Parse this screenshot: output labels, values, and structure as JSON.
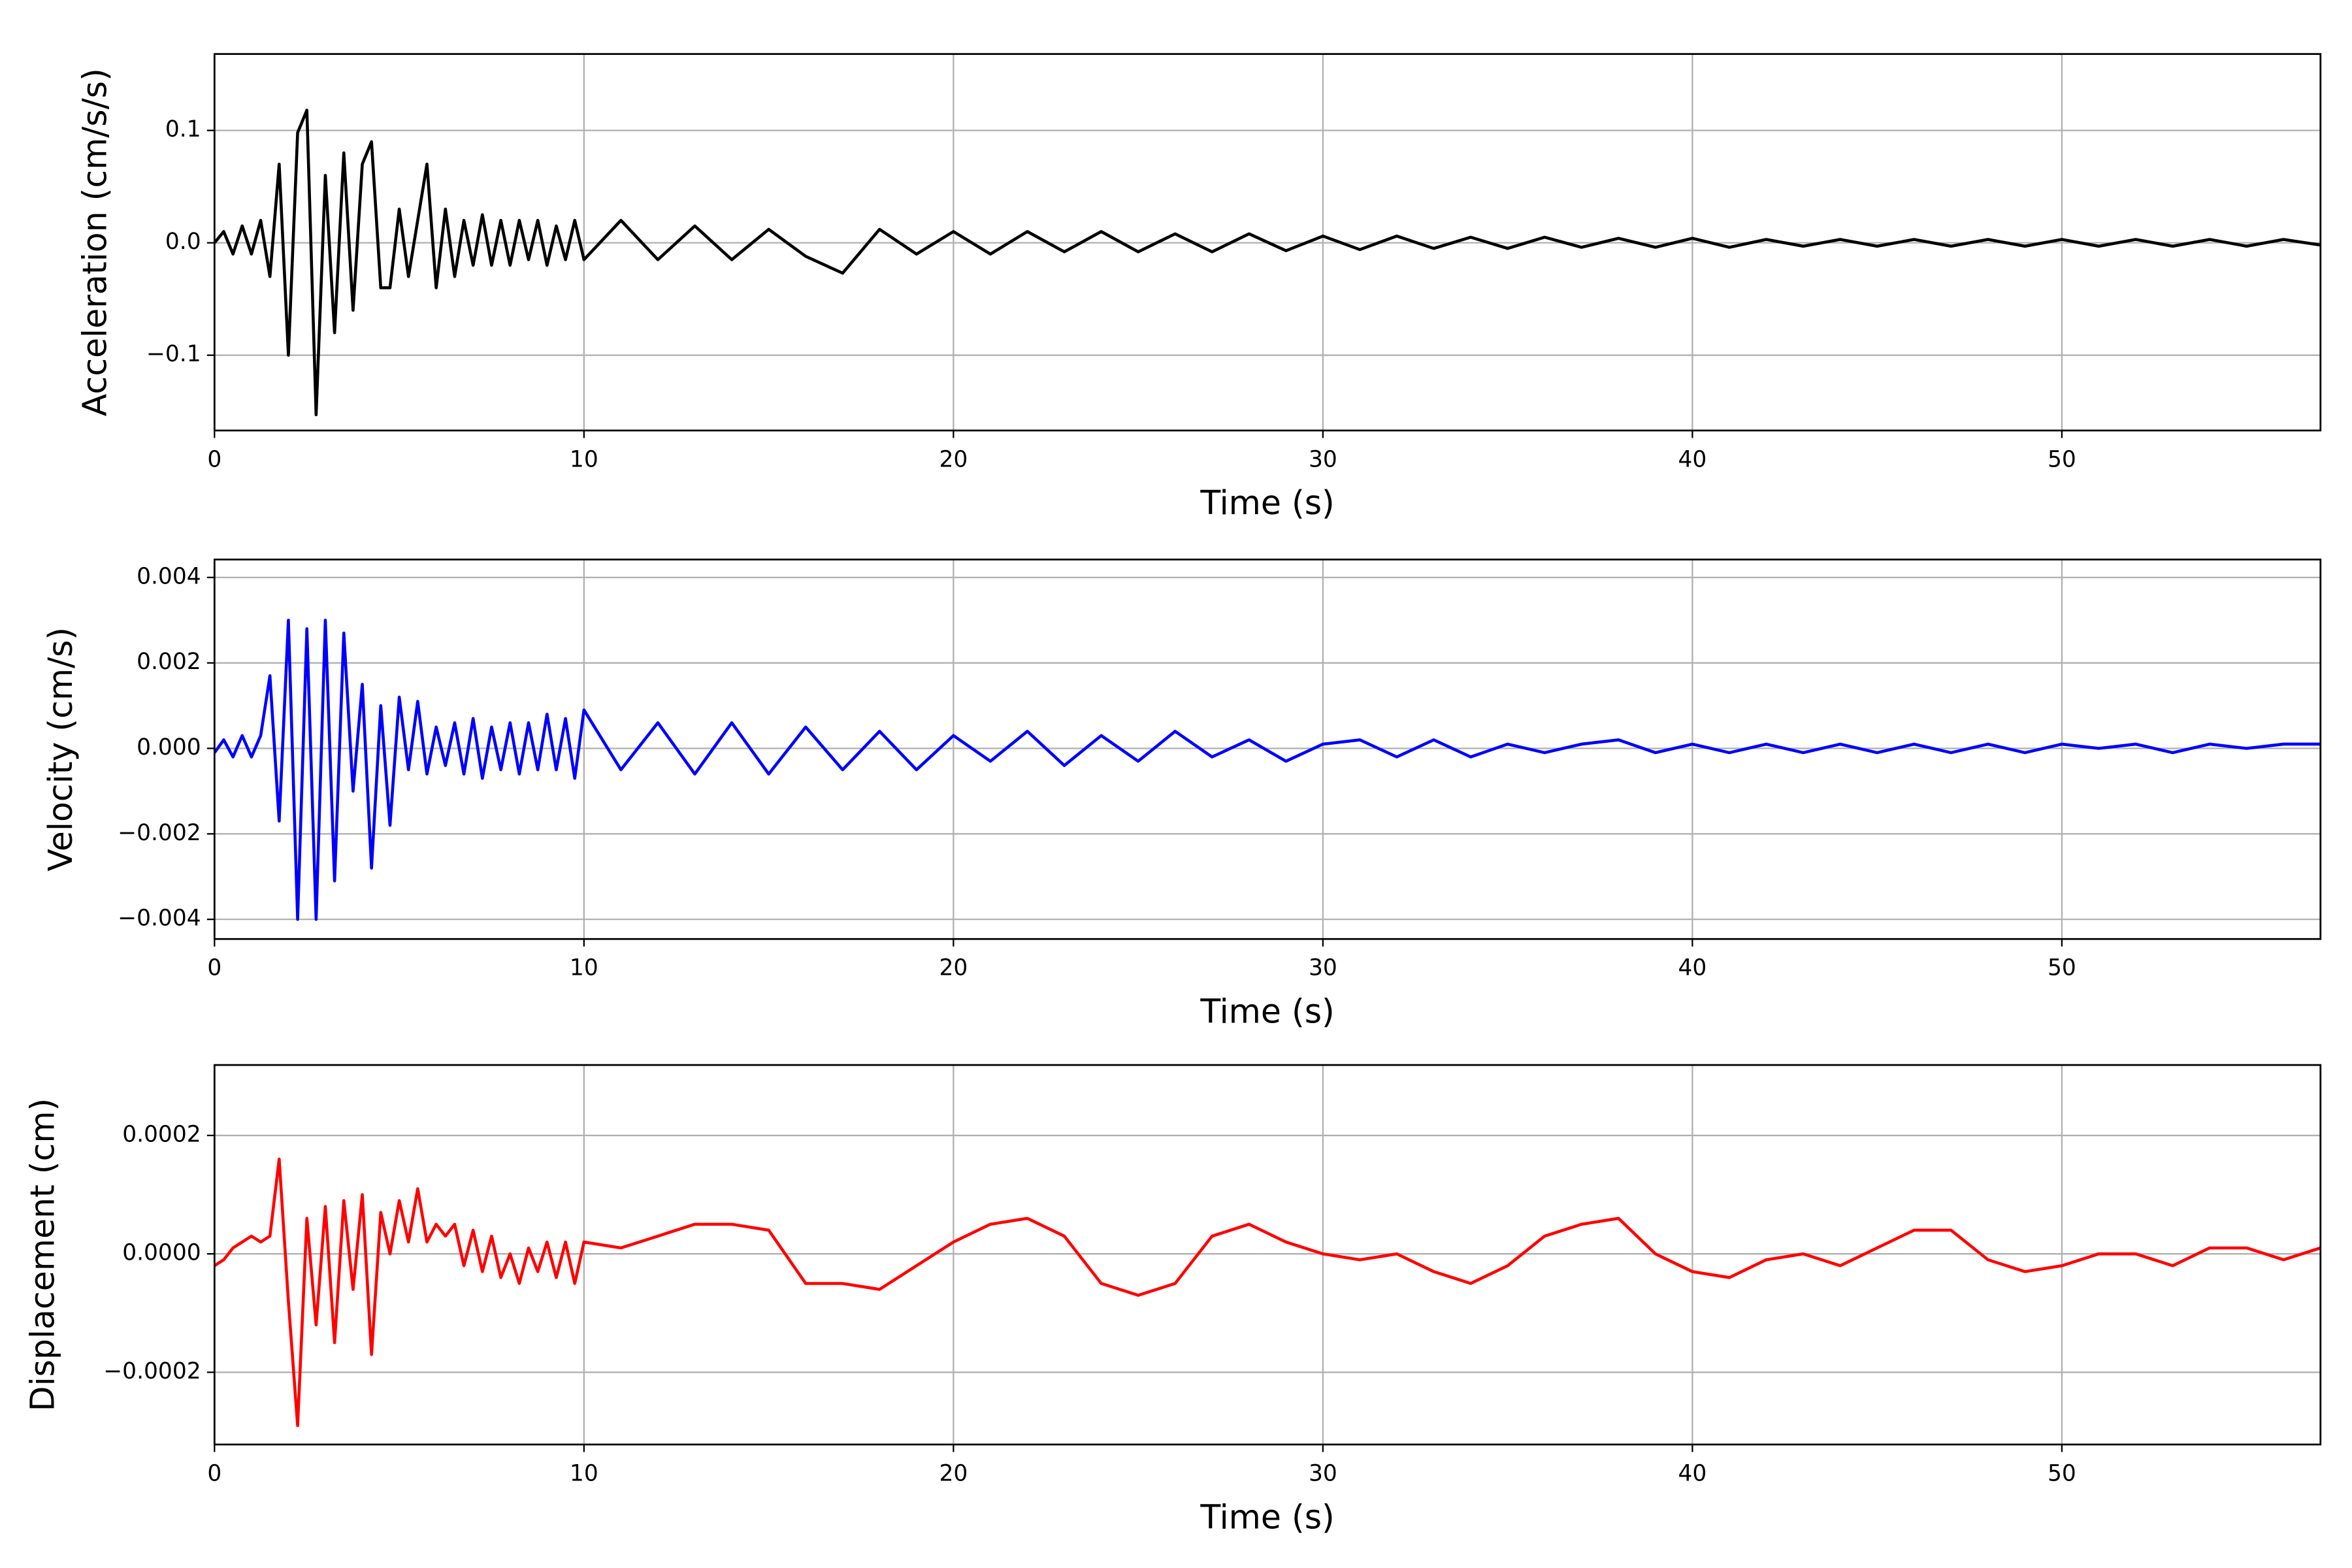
{
  "chart_data": [
    {
      "type": "line",
      "xlabel": "Time (s)",
      "ylabel": "Acceleration (cm/s/s)",
      "color": "#000000",
      "grid": true,
      "xlim": [
        0,
        57
      ],
      "xticks": [
        0,
        10,
        20,
        30,
        40,
        50
      ],
      "ylim": [
        -0.167,
        0.168
      ],
      "yticks": [
        {
          "value": -0.1,
          "label": "−0.1"
        },
        {
          "value": 0,
          "label": "0.0"
        },
        {
          "value": 0.1,
          "label": "0.1"
        }
      ],
      "x": [
        0,
        0.25,
        0.5,
        0.75,
        1,
        1.25,
        1.5,
        1.75,
        2,
        2.25,
        2.5,
        2.75,
        3,
        3.25,
        3.5,
        3.75,
        4,
        4.25,
        4.5,
        4.75,
        5,
        5.25,
        5.5,
        5.75,
        6,
        6.25,
        6.5,
        6.75,
        7,
        7.25,
        7.5,
        7.75,
        8,
        8.25,
        8.5,
        8.75,
        9,
        9.25,
        9.5,
        9.75,
        10,
        11,
        12,
        13,
        14,
        15,
        16,
        17,
        18,
        19,
        20,
        21,
        22,
        23,
        24,
        25,
        26,
        27,
        28,
        29,
        30,
        31,
        32,
        33,
        34,
        35,
        36,
        37,
        38,
        39,
        40,
        41,
        42,
        43,
        44,
        45,
        46,
        47,
        48,
        49,
        50,
        51,
        52,
        53,
        54,
        55,
        56,
        57
      ],
      "values": [
        0,
        0.01,
        -0.01,
        0.015,
        -0.01,
        0.02,
        -0.03,
        0.07,
        -0.1,
        0.098,
        0.118,
        -0.153,
        0.06,
        -0.08,
        0.08,
        -0.06,
        0.07,
        0.09,
        -0.04,
        -0.04,
        0.03,
        -0.03,
        0.02,
        0.07,
        -0.04,
        0.03,
        -0.03,
        0.02,
        -0.02,
        0.025,
        -0.02,
        0.02,
        -0.02,
        0.02,
        -0.015,
        0.02,
        -0.02,
        0.015,
        -0.015,
        0.02,
        -0.015,
        0.02,
        -0.015,
        0.015,
        -0.015,
        0.012,
        -0.012,
        -0.027,
        0.012,
        -0.01,
        0.01,
        -0.01,
        0.01,
        -0.008,
        0.01,
        -0.008,
        0.008,
        -0.008,
        0.008,
        -0.007,
        0.006,
        -0.006,
        0.006,
        -0.005,
        0.005,
        -0.005,
        0.005,
        -0.004,
        0.004,
        -0.004,
        0.004,
        -0.004,
        0.003,
        -0.003,
        0.003,
        -0.003,
        0.003,
        -0.003,
        0.003,
        -0.003,
        0.003,
        -0.003,
        0.003,
        -0.003,
        0.003,
        -0.003,
        0.003,
        -0.002
      ]
    },
    {
      "type": "line",
      "xlabel": "Time (s)",
      "ylabel": "Velocity (cm/s)",
      "color": "#0000ff",
      "grid": true,
      "xlim": [
        0,
        57
      ],
      "xticks": [
        0,
        10,
        20,
        30,
        40,
        50
      ],
      "ylim": [
        -0.00446,
        0.00442
      ],
      "yticks": [
        {
          "value": -0.004,
          "label": "−0.004"
        },
        {
          "value": -0.002,
          "label": "−0.002"
        },
        {
          "value": 0,
          "label": "0.000"
        },
        {
          "value": 0.002,
          "label": "0.002"
        },
        {
          "value": 0.004,
          "label": "0.004"
        }
      ],
      "x": [
        0,
        0.25,
        0.5,
        0.75,
        1,
        1.25,
        1.5,
        1.75,
        2,
        2.25,
        2.5,
        2.75,
        3,
        3.25,
        3.5,
        3.75,
        4,
        4.25,
        4.5,
        4.75,
        5,
        5.25,
        5.5,
        5.75,
        6,
        6.25,
        6.5,
        6.75,
        7,
        7.25,
        7.5,
        7.75,
        8,
        8.25,
        8.5,
        8.75,
        9,
        9.25,
        9.5,
        9.75,
        10,
        11,
        12,
        13,
        14,
        15,
        16,
        17,
        18,
        19,
        20,
        21,
        22,
        23,
        24,
        25,
        26,
        27,
        28,
        29,
        30,
        31,
        32,
        33,
        34,
        35,
        36,
        37,
        38,
        39,
        40,
        41,
        42,
        43,
        44,
        45,
        46,
        47,
        48,
        49,
        50,
        51,
        52,
        53,
        54,
        55,
        56,
        57
      ],
      "values": [
        -0.0001,
        0.0002,
        -0.0002,
        0.0003,
        -0.0002,
        0.0003,
        0.0017,
        -0.0017,
        0.003,
        -0.004,
        0.0028,
        -0.004,
        0.003,
        -0.0031,
        0.0027,
        -0.001,
        0.0015,
        -0.0028,
        0.001,
        -0.0018,
        0.0012,
        -0.0005,
        0.0011,
        -0.0006,
        0.0005,
        -0.0004,
        0.0006,
        -0.0006,
        0.0007,
        -0.0007,
        0.0005,
        -0.0005,
        0.0006,
        -0.0006,
        0.0006,
        -0.0005,
        0.0008,
        -0.0005,
        0.0007,
        -0.0007,
        0.0009,
        -0.0005,
        0.0006,
        -0.0006,
        0.0006,
        -0.0006,
        0.0005,
        -0.0005,
        0.0004,
        -0.0005,
        0.0003,
        -0.0003,
        0.0004,
        -0.0004,
        0.0003,
        -0.0003,
        0.0004,
        -0.0002,
        0.0002,
        -0.0003,
        0.0001,
        0.0002,
        -0.0002,
        0.0002,
        -0.0002,
        0.0001,
        -0.0001,
        0.0001,
        0.0002,
        -0.0001,
        0.0001,
        -0.0001,
        0.0001,
        -0.0001,
        0.0001,
        -0.0001,
        0.0001,
        -0.0001,
        0.0001,
        -0.0001,
        0.0001,
        0,
        0.0001,
        -0.0001,
        0.0001,
        0,
        0.0001,
        0.0001
      ]
    },
    {
      "type": "line",
      "xlabel": "Time (s)",
      "ylabel": "Displacement (cm)",
      "color": "#ff0000",
      "grid": true,
      "xlim": [
        0,
        57
      ],
      "xticks": [
        0,
        10,
        20,
        30,
        40,
        50
      ],
      "ylim": [
        -0.000322,
        0.000319
      ],
      "yticks": [
        {
          "value": -0.0002,
          "label": "−0.0002"
        },
        {
          "value": 0,
          "label": "0.0000"
        },
        {
          "value": 0.0002,
          "label": "0.0002"
        }
      ],
      "x": [
        0,
        0.25,
        0.5,
        0.75,
        1,
        1.25,
        1.5,
        1.75,
        2,
        2.25,
        2.5,
        2.75,
        3,
        3.25,
        3.5,
        3.75,
        4,
        4.25,
        4.5,
        4.75,
        5,
        5.25,
        5.5,
        5.75,
        6,
        6.25,
        6.5,
        6.75,
        7,
        7.25,
        7.5,
        7.75,
        8,
        8.25,
        8.5,
        8.75,
        9,
        9.25,
        9.5,
        9.75,
        10,
        11,
        12,
        13,
        14,
        15,
        16,
        17,
        18,
        19,
        20,
        21,
        22,
        23,
        24,
        25,
        26,
        27,
        28,
        29,
        30,
        31,
        32,
        33,
        34,
        35,
        36,
        37,
        38,
        39,
        40,
        41,
        42,
        43,
        44,
        45,
        46,
        47,
        48,
        49,
        50,
        51,
        52,
        53,
        54,
        55,
        56,
        57
      ],
      "values": [
        -2e-05,
        -1e-05,
        1e-05,
        2e-05,
        3e-05,
        2e-05,
        3e-05,
        0.00016,
        -8e-05,
        -0.00029,
        6e-05,
        -0.00012,
        8e-05,
        -0.00015,
        9e-05,
        -6e-05,
        0.0001,
        -0.00017,
        7e-05,
        0,
        9e-05,
        2e-05,
        0.00011,
        2e-05,
        5e-05,
        3e-05,
        5e-05,
        -2e-05,
        4e-05,
        -3e-05,
        3e-05,
        -4e-05,
        0,
        -5e-05,
        1e-05,
        -3e-05,
        2e-05,
        -4e-05,
        2e-05,
        -5e-05,
        2e-05,
        1e-05,
        3e-05,
        5e-05,
        5e-05,
        4e-05,
        -5e-05,
        -5e-05,
        -6e-05,
        -2e-05,
        2e-05,
        5e-05,
        6e-05,
        3e-05,
        -5e-05,
        -7e-05,
        -5e-05,
        3e-05,
        5e-05,
        2e-05,
        0,
        -1e-05,
        0,
        -3e-05,
        -5e-05,
        -2e-05,
        3e-05,
        5e-05,
        6e-05,
        0,
        -3e-05,
        -4e-05,
        -1e-05,
        0,
        -2e-05,
        1e-05,
        4e-05,
        4e-05,
        -1e-05,
        -3e-05,
        -2e-05,
        0,
        0,
        -2e-05,
        1e-05,
        1e-05,
        -1e-05,
        1e-05
      ]
    }
  ]
}
